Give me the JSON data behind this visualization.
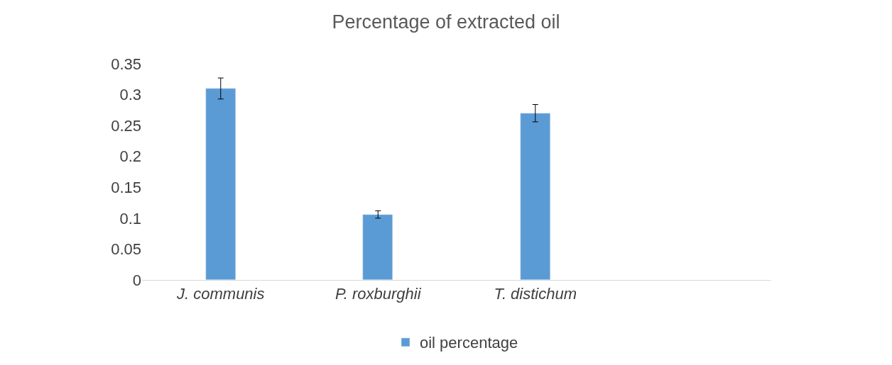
{
  "chart_data": {
    "type": "bar",
    "title": "Percentage of extracted oil",
    "categories": [
      "J. communis",
      "P. roxburghii",
      "T. distichum",
      null
    ],
    "series": [
      {
        "name": "oil percentage",
        "color": "#5b9bd5",
        "values": [
          0.31,
          0.106,
          0.27,
          null
        ],
        "errors": [
          0.017,
          0.006,
          0.014,
          null
        ]
      }
    ],
    "ylim": [
      0,
      0.35
    ],
    "yticks": [
      0,
      0.05,
      0.1,
      0.15,
      0.2,
      0.25,
      0.3,
      0.35
    ],
    "legend": "bottom"
  }
}
